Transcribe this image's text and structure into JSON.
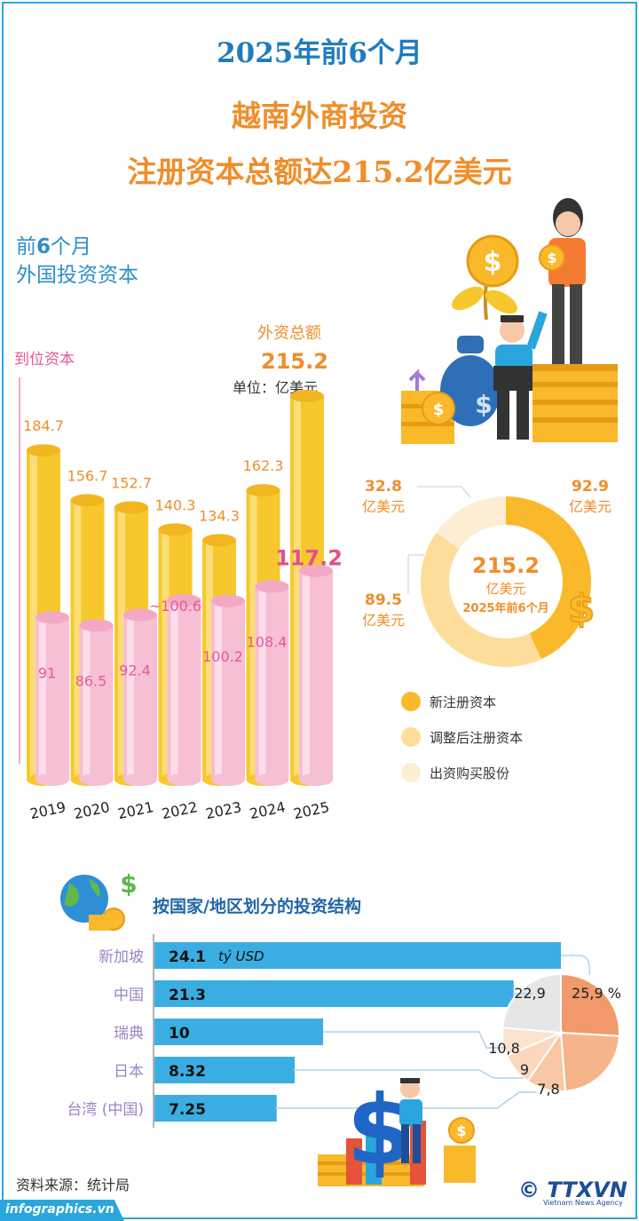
{
  "header": {
    "line1": "2025年前6个月",
    "line2": "越南外商投资",
    "line3": "注册资本总额达215.2亿美元"
  },
  "subtitle": {
    "prefix": "前",
    "num": "6",
    "suffix": "个月",
    "line2": "外国投资资本"
  },
  "labels": {
    "disbursed": "到位资本",
    "total": "外资总额",
    "total_value": "215.2",
    "unit": "单位：亿美元"
  },
  "colors": {
    "registered": "#f7c82e",
    "disbursed": "#f6bfd3",
    "orange": "#ef8e2a",
    "pink": "#e8579b",
    "blue_bar": "#3aaee2",
    "donut_new": "#f9b92b",
    "donut_adjusted": "#fddd9a",
    "donut_shares": "#fdeed3"
  },
  "chart_data": [
    {
      "type": "bar",
      "categories": [
        "2019",
        "2020",
        "2021",
        "2022",
        "2023",
        "2024",
        "2025"
      ],
      "series": [
        {
          "name": "外资总额",
          "values": [
            184.7,
            156.7,
            152.7,
            140.3,
            134.3,
            162.3,
            215.2
          ]
        },
        {
          "name": "到位资本",
          "values": [
            91,
            86.5,
            92.4,
            100.6,
            100.2,
            108.4,
            117.2
          ]
        }
      ],
      "value_labels_registered": [
        "184.7",
        "156.7",
        "152.7",
        "140.3",
        "134.3",
        "162.3",
        ""
      ],
      "value_labels_disbursed": [
        "91",
        "86.5",
        "92.4",
        "~100.6",
        "100.2",
        "108.4",
        "117.2"
      ],
      "ylim": [
        0,
        230
      ]
    },
    {
      "type": "pie",
      "center_value": "215.2",
      "center_unit": "亿美元",
      "center_caption": "2025年前6个月",
      "slices": [
        {
          "name": "新注册资本",
          "value": 92.9,
          "label": "92.9",
          "unit": "亿美元"
        },
        {
          "name": "调整后注册资本",
          "value": 89.5,
          "label": "89.5",
          "unit": "亿美元"
        },
        {
          "name": "出资购买股份",
          "value": 32.8,
          "label": "32.8",
          "unit": "亿美元"
        }
      ]
    },
    {
      "type": "bar",
      "title": "按国家/地区划分的投资结构",
      "categories": [
        "新加坡",
        "中国",
        "瑞典",
        "日本",
        "台湾 (中国)"
      ],
      "values": [
        24.1,
        21.3,
        10,
        8.32,
        7.25
      ],
      "value_labels": [
        "24.1",
        "21.3",
        "10",
        "8.32",
        "7.25"
      ],
      "unit_label": "tỷ USD",
      "xlim": [
        0,
        26
      ]
    },
    {
      "type": "pie",
      "slices": [
        {
          "label": "25,9 %",
          "value": 25.9
        },
        {
          "label": "22,9",
          "value": 22.9
        },
        {
          "label": "10,8",
          "value": 10.8
        },
        {
          "label": "9",
          "value": 9
        },
        {
          "label": "7,8",
          "value": 7.8
        }
      ],
      "remainder": 23.6
    }
  ],
  "footer": {
    "source": "资料来源：统计局",
    "site": "infographics.vn",
    "agency": "TTXVN",
    "agency_sub": "Vietnam News Agency",
    "copyright": "©"
  },
  "icons": [
    "globe-icon",
    "dollar-icon",
    "coins-icon",
    "businesswoman-icon",
    "businessman-laptop-icon",
    "money-bag-icon",
    "plant-coin-icon",
    "businessman-thumbsup-icon",
    "dollar-sign-3d-icon",
    "growth-bars-icon"
  ]
}
